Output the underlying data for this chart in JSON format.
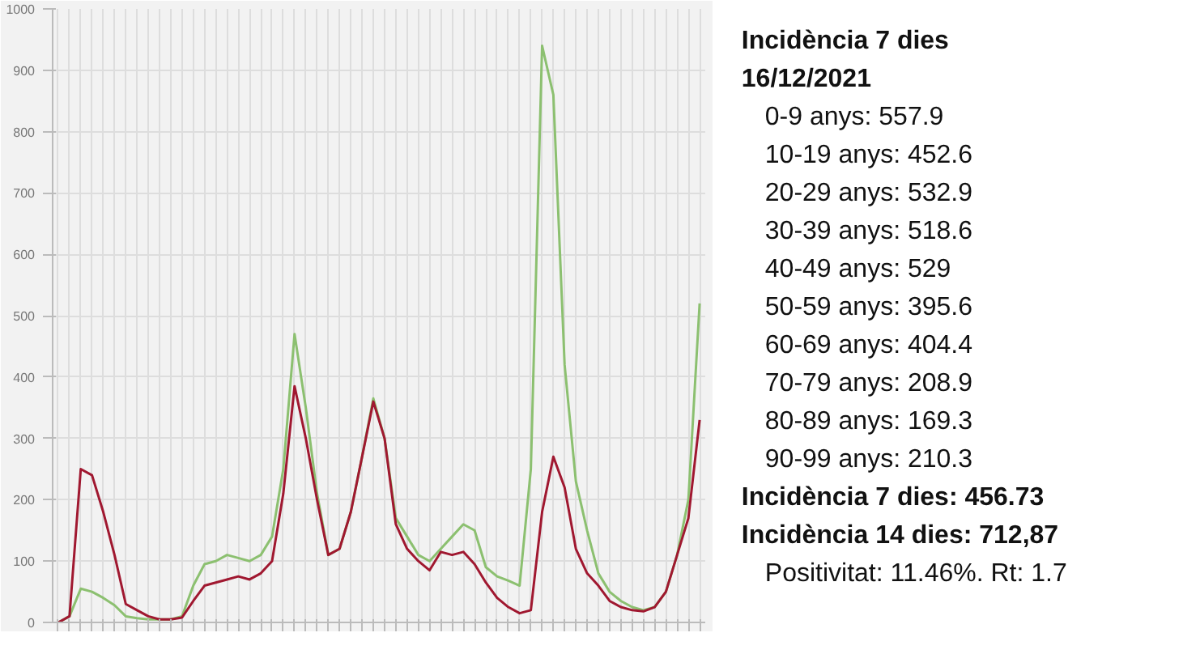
{
  "chart_data": [
    {
      "type": "line",
      "categories": [
        null,
        null,
        null,
        null,
        null,
        null,
        null,
        null,
        null,
        null,
        null,
        null,
        null,
        null,
        null,
        null,
        null,
        null,
        null,
        null,
        null,
        null,
        null,
        null,
        null,
        null,
        null,
        null,
        null,
        null,
        null,
        null,
        null,
        null,
        null,
        null,
        null,
        null,
        null,
        null,
        null,
        null,
        null,
        null,
        null,
        null,
        null,
        null,
        null,
        null,
        null,
        null,
        null,
        null,
        null,
        null,
        null,
        null
      ],
      "series": [
        {
          "color": "#8cc070",
          "values": [
            0,
            10,
            55,
            50,
            40,
            28,
            10,
            7,
            5,
            5,
            5,
            10,
            60,
            95,
            100,
            110,
            105,
            100,
            110,
            140,
            250,
            470,
            350,
            210,
            110,
            120,
            180,
            270,
            365,
            300,
            170,
            140,
            110,
            100,
            120,
            140,
            160,
            150,
            90,
            75,
            68,
            60,
            250,
            940,
            860,
            420,
            230,
            150,
            80,
            50,
            35,
            25,
            20,
            25,
            50,
            110,
            200,
            520
          ]
        },
        {
          "color": "#a01830",
          "values": [
            0,
            10,
            250,
            240,
            180,
            110,
            30,
            20,
            10,
            5,
            5,
            8,
            35,
            60,
            65,
            70,
            75,
            70,
            80,
            100,
            210,
            385,
            300,
            200,
            110,
            120,
            180,
            270,
            360,
            300,
            160,
            120,
            100,
            85,
            115,
            110,
            115,
            95,
            65,
            40,
            25,
            15,
            20,
            180,
            270,
            220,
            120,
            80,
            60,
            35,
            25,
            20,
            18,
            25,
            50,
            110,
            170,
            330
          ]
        }
      ],
      "ylim": [
        0,
        1000
      ],
      "yticks": [
        0,
        100,
        200,
        300,
        400,
        500,
        600,
        700,
        800,
        900,
        1000
      ],
      "grid": true,
      "tick_labels": "y",
      "line_style": "solid",
      "marker": "none"
    },
    {
      "type": "other",
      "title": "Incidència 7 dies",
      "subtitle": "16/12/2021",
      "annotations": [
        "0-9 anys: 557.9",
        "10-19 anys: 452.6",
        "20-29 anys: 532.9",
        "30-39 anys: 518.6",
        "40-49 anys: 529",
        "50-59 anys: 395.6",
        "60-69 anys: 404.4",
        "70-79 anys: 208.9",
        "80-89 anys: 169.3",
        "90-99 anys: 210.3",
        "Incidència 7 dies: 456.73",
        "Incidència 14 dies: 712,87",
        "Positivitat: 11.46%. Rt: 1.7"
      ]
    }
  ]
}
